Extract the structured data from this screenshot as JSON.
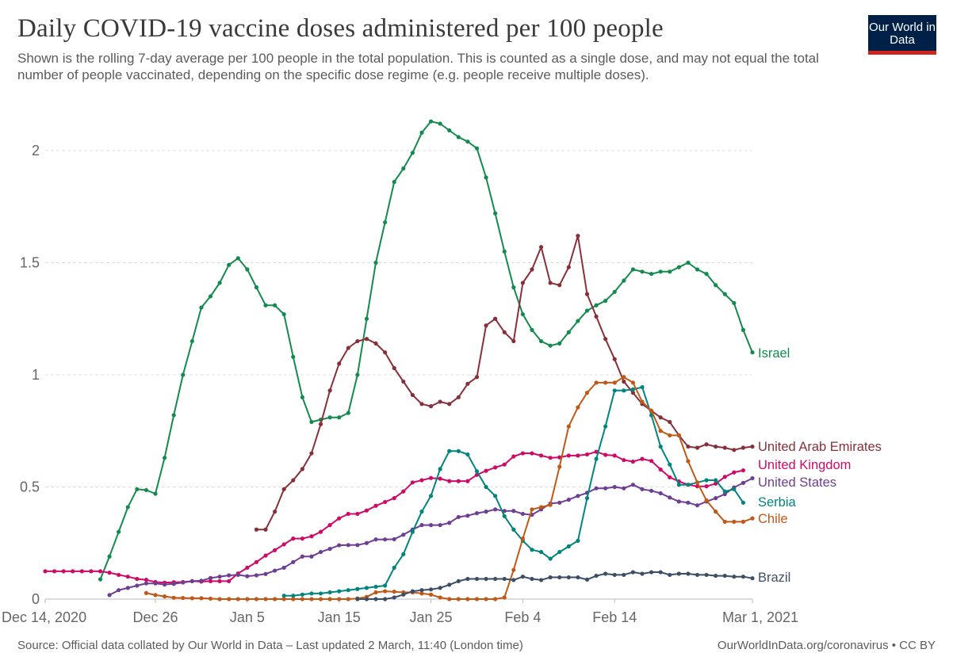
{
  "header": {
    "title": "Daily COVID-19 vaccine doses administered per 100 people",
    "subtitle": "Shown is the rolling 7-day average per 100 people in the total population. This is counted as a single dose, and may not equal the total number of people vaccinated, depending on the specific dose regime (e.g. people receive multiple doses).",
    "logo_text": "Our World in Data",
    "logo_colors": {
      "bg": "#002147",
      "bar": "#ce261e"
    }
  },
  "footer": {
    "source": "Source: Official data collated by Our World in Data – Last updated 2 March, 11:40 (London time)",
    "credit": "OurWorldInData.org/coronavirus • CC BY"
  },
  "chart_data": {
    "type": "line",
    "title": "Daily COVID-19 vaccine doses administered per 100 people",
    "xlabel": "",
    "ylabel": "",
    "x_unit": "days since Dec 14, 2020",
    "xlim": [
      0,
      77
    ],
    "ylim": [
      0,
      2
    ],
    "grid": true,
    "legend": "inline-right",
    "x_ticks": [
      {
        "day": 0,
        "label": "Dec 14, 2020"
      },
      {
        "day": 12,
        "label": "Dec 26"
      },
      {
        "day": 22,
        "label": "Jan 5"
      },
      {
        "day": 32,
        "label": "Jan 15"
      },
      {
        "day": 42,
        "label": "Jan 25"
      },
      {
        "day": 52,
        "label": "Feb 4"
      },
      {
        "day": 62,
        "label": "Feb 14"
      },
      {
        "day": 77,
        "label": "Mar 1, 2021"
      }
    ],
    "y_ticks": [
      {
        "value": 0,
        "label": "0"
      },
      {
        "value": 0.5,
        "label": "0.5"
      },
      {
        "value": 1,
        "label": "1"
      },
      {
        "value": 1.5,
        "label": "1.5"
      },
      {
        "value": 2,
        "label": "2"
      }
    ],
    "series": [
      {
        "name": "Israel",
        "color": "#138a4e",
        "start_day": 6,
        "values": [
          0.088,
          0.19,
          0.3,
          0.41,
          0.49,
          0.486,
          0.47,
          0.63,
          0.82,
          1.0,
          1.15,
          1.3,
          1.35,
          1.41,
          1.49,
          1.52,
          1.47,
          1.39,
          1.31,
          1.31,
          1.27,
          1.08,
          0.9,
          0.79,
          0.8,
          0.81,
          0.81,
          0.83,
          1.0,
          1.25,
          1.5,
          1.68,
          1.86,
          1.92,
          1.99,
          2.08,
          2.13,
          2.12,
          2.09,
          2.06,
          2.04,
          2.01,
          1.88,
          1.72,
          1.55,
          1.39,
          1.27,
          1.2,
          1.15,
          1.13,
          1.14,
          1.19,
          1.24,
          1.286,
          1.31,
          1.33,
          1.37,
          1.42,
          1.47,
          1.46,
          1.45,
          1.46,
          1.46,
          1.48,
          1.5,
          1.47,
          1.45,
          1.4,
          1.36,
          1.32,
          1.2,
          1.1
        ]
      },
      {
        "name": "United Arab Emirates",
        "color": "#883039",
        "start_day": 23,
        "values": [
          0.31,
          0.31,
          0.39,
          0.49,
          0.53,
          0.58,
          0.65,
          0.78,
          0.93,
          1.05,
          1.12,
          1.15,
          1.16,
          1.14,
          1.1,
          1.03,
          0.97,
          0.91,
          0.87,
          0.86,
          0.88,
          0.87,
          0.9,
          0.96,
          0.99,
          1.22,
          1.25,
          1.19,
          1.15,
          1.41,
          1.47,
          1.57,
          1.41,
          1.4,
          1.48,
          1.62,
          1.36,
          1.26,
          1.16,
          1.07,
          0.97,
          0.92,
          0.87,
          0.84,
          0.81,
          0.79,
          0.73,
          0.68,
          0.675,
          0.69,
          0.68,
          0.675,
          0.665,
          0.675,
          0.68
        ]
      },
      {
        "name": "United Kingdom",
        "color": "#cf0a66",
        "start_day": 0,
        "values": [
          0.124,
          0.124,
          0.124,
          0.124,
          0.124,
          0.124,
          0.124,
          0.118,
          0.108,
          0.1,
          0.09,
          0.086,
          0.076,
          0.073,
          0.075,
          0.076,
          0.08,
          0.078,
          0.08,
          0.08,
          0.08,
          0.114,
          0.14,
          0.165,
          0.194,
          0.218,
          0.244,
          0.27,
          0.27,
          0.28,
          0.3,
          0.33,
          0.36,
          0.38,
          0.38,
          0.395,
          0.416,
          0.433,
          0.45,
          0.48,
          0.52,
          0.53,
          0.54,
          0.537,
          0.526,
          0.526,
          0.526,
          0.554,
          0.572,
          0.587,
          0.6,
          0.636,
          0.65,
          0.65,
          0.64,
          0.63,
          0.632,
          0.64,
          0.64,
          0.645,
          0.657,
          0.643,
          0.64,
          0.62,
          0.613,
          0.625,
          0.616,
          0.578,
          0.543,
          0.525,
          0.51,
          0.503,
          0.503,
          0.515,
          0.545,
          0.565,
          0.574
        ]
      },
      {
        "name": "United States",
        "color": "#6d3e91",
        "start_day": 7,
        "values": [
          0.018,
          0.04,
          0.05,
          0.06,
          0.07,
          0.07,
          0.065,
          0.068,
          0.074,
          0.08,
          0.082,
          0.094,
          0.1,
          0.106,
          0.108,
          0.102,
          0.106,
          0.112,
          0.127,
          0.14,
          0.165,
          0.19,
          0.19,
          0.21,
          0.224,
          0.24,
          0.241,
          0.241,
          0.25,
          0.266,
          0.266,
          0.267,
          0.287,
          0.31,
          0.33,
          0.33,
          0.33,
          0.34,
          0.366,
          0.372,
          0.383,
          0.39,
          0.4,
          0.393,
          0.393,
          0.38,
          0.376,
          0.4,
          0.426,
          0.43,
          0.443,
          0.46,
          0.474,
          0.494,
          0.494,
          0.5,
          0.494,
          0.51,
          0.49,
          0.483,
          0.472,
          0.453,
          0.435,
          0.43,
          0.418,
          0.435,
          0.45,
          0.468,
          0.498,
          0.518,
          0.539
        ]
      },
      {
        "name": "Serbia",
        "color": "#00847e",
        "start_day": 26,
        "values": [
          0.015,
          0.015,
          0.02,
          0.025,
          0.025,
          0.03,
          0.035,
          0.04,
          0.045,
          0.05,
          0.055,
          0.06,
          0.14,
          0.2,
          0.3,
          0.39,
          0.46,
          0.58,
          0.66,
          0.66,
          0.645,
          0.57,
          0.5,
          0.46,
          0.37,
          0.31,
          0.26,
          0.22,
          0.21,
          0.18,
          0.21,
          0.235,
          0.26,
          0.45,
          0.625,
          0.77,
          0.93,
          0.93,
          0.935,
          0.945,
          0.82,
          0.68,
          0.6,
          0.51,
          0.51,
          0.52,
          0.53,
          0.53,
          0.48,
          0.49,
          0.43
        ]
      },
      {
        "name": "Chile",
        "color": "#c05917",
        "start_day": 11,
        "values": [
          0.027,
          0.018,
          0.012,
          0.006,
          0.005,
          0.004,
          0.004,
          0.002,
          0,
          0,
          0,
          0,
          0,
          0,
          0,
          0,
          0,
          0,
          0,
          0,
          0,
          0,
          0,
          0.003,
          0.01,
          0.03,
          0.035,
          0.033,
          0.03,
          0.03,
          0.025,
          0.02,
          0.007,
          0,
          0,
          0,
          0,
          0,
          0,
          0.007,
          0.13,
          0.27,
          0.4,
          0.41,
          0.42,
          0.59,
          0.77,
          0.855,
          0.92,
          0.965,
          0.965,
          0.965,
          0.99,
          0.965,
          0.88,
          0.84,
          0.75,
          0.73,
          0.73,
          0.615,
          0.52,
          0.44,
          0.39,
          0.345,
          0.345,
          0.345,
          0.36
        ]
      },
      {
        "name": "Brazil",
        "color": "#3c4e66",
        "start_day": 34,
        "values": [
          0,
          0,
          0,
          0,
          0.007,
          0.02,
          0.035,
          0.04,
          0.043,
          0.05,
          0.064,
          0.08,
          0.09,
          0.09,
          0.09,
          0.09,
          0.09,
          0.085,
          0.1,
          0.09,
          0.085,
          0.097,
          0.097,
          0.097,
          0.097,
          0.087,
          0.104,
          0.113,
          0.108,
          0.108,
          0.12,
          0.113,
          0.12,
          0.12,
          0.108,
          0.113,
          0.113,
          0.108,
          0.108,
          0.104,
          0.104,
          0.1,
          0.1,
          0.093
        ]
      }
    ]
  }
}
